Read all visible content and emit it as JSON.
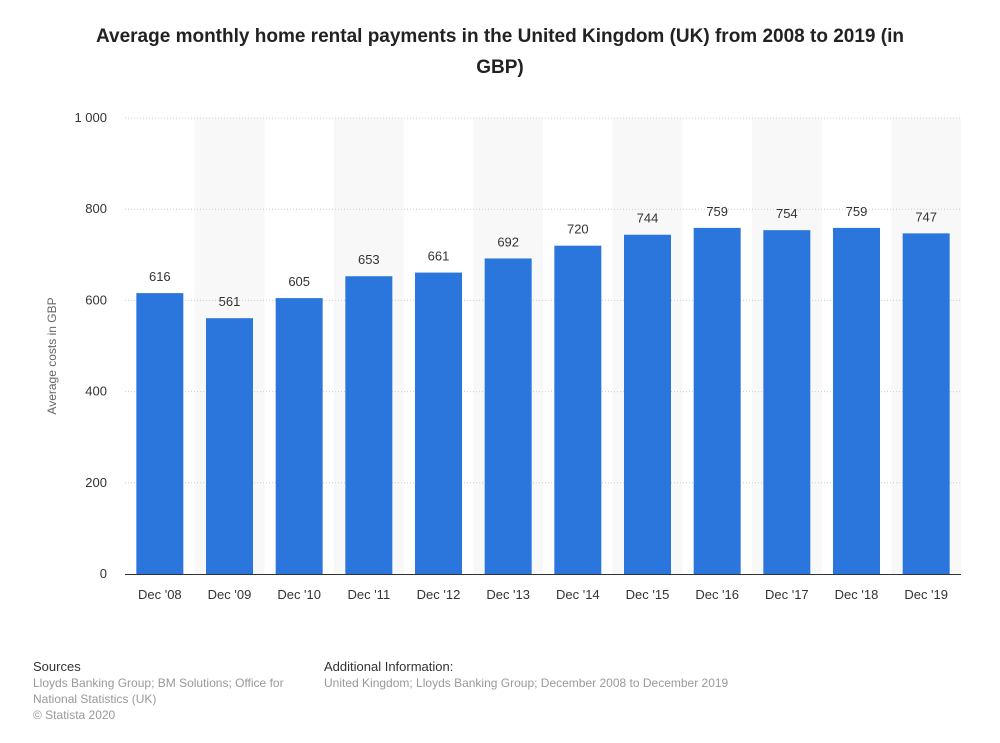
{
  "chart_data": {
    "type": "bar",
    "title": "Average monthly home rental payments in the United Kingdom (UK) from 2008 to 2019 (in GBP)",
    "xlabel": "",
    "ylabel": "Average costs in GBP",
    "categories": [
      "Dec '08",
      "Dec '09",
      "Dec '10",
      "Dec '11",
      "Dec '12",
      "Dec '13",
      "Dec '14",
      "Dec '15",
      "Dec '16",
      "Dec '17",
      "Dec '18",
      "Dec '19"
    ],
    "values": [
      616,
      561,
      605,
      653,
      661,
      692,
      720,
      744,
      759,
      754,
      759,
      747
    ],
    "ylim": [
      0,
      1000
    ],
    "yticks": [
      0,
      200,
      400,
      600,
      800,
      1000
    ],
    "ytick_labels": [
      "0",
      "200",
      "400",
      "600",
      "800",
      "1 000"
    ],
    "grid": true,
    "legend": "none",
    "bar_color": "#2a76dd",
    "data_labels": true
  },
  "footer": {
    "sources_heading": "Sources",
    "sources_lines": [
      "Lloyds Banking Group; BM Solutions; Office for",
      "National Statistics (UK)",
      "© Statista 2020"
    ],
    "additional_heading": "Additional Information:",
    "additional_text": "United Kingdom; Lloyds Banking Group; December 2008 to December 2019"
  }
}
